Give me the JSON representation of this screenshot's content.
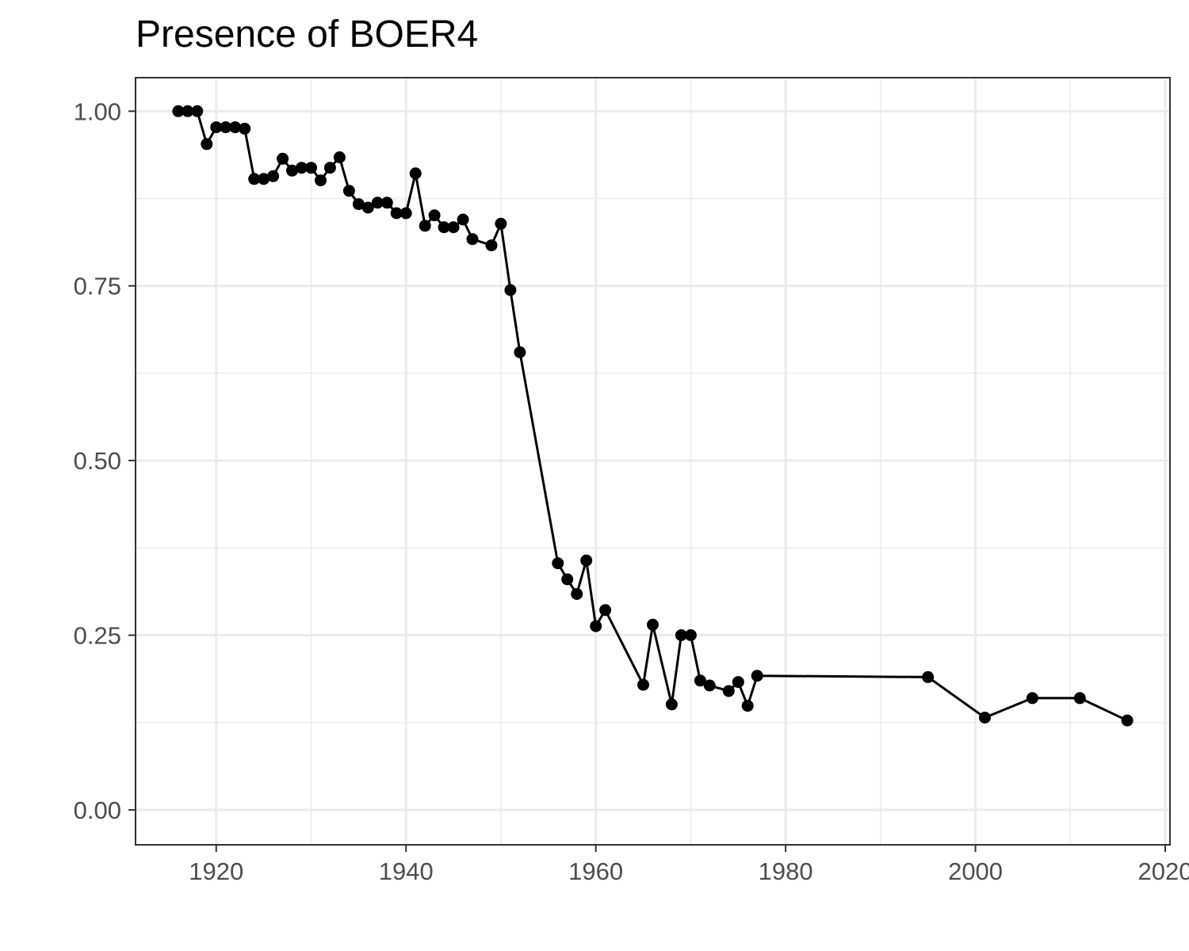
{
  "chart_data": {
    "type": "line",
    "title": "Presence of BOER4",
    "xlabel": "",
    "ylabel": "",
    "xlim": [
      1911.5,
      2020.5
    ],
    "ylim": [
      -0.05,
      1.048
    ],
    "x_ticks": [
      1920,
      1940,
      1960,
      1980,
      2000,
      2020
    ],
    "x_tick_labels": [
      "1920",
      "1940",
      "1960",
      "1980",
      "2000",
      "2020"
    ],
    "y_ticks": [
      0,
      0.25,
      0.5,
      0.75,
      1.0
    ],
    "y_tick_labels": [
      "0.00",
      "0.25",
      "0.50",
      "0.75",
      "1.00"
    ],
    "grid": true,
    "markers": true,
    "line_color": "#000000",
    "series": [
      {
        "x": [
          1916,
          1917,
          1918,
          1919,
          1920,
          1921,
          1922,
          1923,
          1924,
          1925,
          1926,
          1927,
          1928,
          1929,
          1930,
          1931,
          1932,
          1933,
          1934,
          1935,
          1936,
          1937,
          1938,
          1939,
          1940,
          1941,
          1942,
          1943,
          1944,
          1945,
          1946,
          1947,
          1949,
          1950,
          1951,
          1952,
          1956,
          1957,
          1958,
          1959,
          1960,
          1961,
          1965,
          1966,
          1968,
          1969,
          1970,
          1971,
          1972,
          1974,
          1975,
          1976,
          1977,
          1995,
          2001,
          2006,
          2011,
          2016
        ],
        "y": [
          1.0,
          1.0,
          1.0,
          0.953,
          0.977,
          0.977,
          0.977,
          0.975,
          0.903,
          0.903,
          0.907,
          0.932,
          0.915,
          0.919,
          0.919,
          0.901,
          0.919,
          0.934,
          0.886,
          0.867,
          0.862,
          0.869,
          0.869,
          0.854,
          0.854,
          0.911,
          0.836,
          0.851,
          0.834,
          0.834,
          0.845,
          0.817,
          0.808,
          0.839,
          0.744,
          0.655,
          0.353,
          0.33,
          0.309,
          0.357,
          0.263,
          0.286,
          0.179,
          0.265,
          0.151,
          0.25,
          0.25,
          0.185,
          0.178,
          0.17,
          0.183,
          0.149,
          0.192,
          0.19,
          0.132,
          0.16,
          0.16,
          0.128
        ]
      }
    ]
  }
}
